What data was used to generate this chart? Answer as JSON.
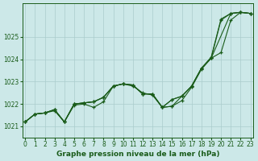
{
  "xlabel": "Graphe pression niveau de la mer (hPa)",
  "bg_color": "#cce8e8",
  "grid_color": "#aacccc",
  "line_color": "#1a5c1a",
  "x_ticks": [
    0,
    1,
    2,
    3,
    4,
    5,
    6,
    7,
    8,
    9,
    10,
    11,
    12,
    13,
    14,
    15,
    16,
    17,
    18,
    19,
    20,
    21,
    22,
    23
  ],
  "y_ticks": [
    1021,
    1022,
    1023,
    1024,
    1025
  ],
  "ylim": [
    1020.5,
    1026.5
  ],
  "xlim": [
    -0.3,
    23.3
  ],
  "series": [
    {
      "x": [
        0,
        1,
        2,
        3,
        4,
        5,
        6,
        7,
        8,
        9,
        10,
        11,
        12,
        13,
        14,
        15,
        16,
        17,
        18,
        19,
        20,
        21,
        22,
        23
      ],
      "y": [
        1021.2,
        1021.55,
        1021.6,
        1021.7,
        1021.2,
        1021.95,
        1022.0,
        1021.85,
        1022.1,
        1022.8,
        1022.9,
        1022.8,
        1022.5,
        1022.4,
        1021.85,
        1021.9,
        1022.15,
        1022.75,
        1023.55,
        1024.05,
        1025.75,
        1026.05,
        1026.1,
        1026.05
      ]
    },
    {
      "x": [
        0,
        1,
        2,
        3,
        4,
        5,
        6,
        7,
        8,
        9,
        10,
        11,
        12,
        13,
        14,
        15,
        16,
        17,
        18,
        19,
        20,
        21,
        22,
        23
      ],
      "y": [
        1021.2,
        1021.55,
        1021.6,
        1021.75,
        1021.2,
        1022.0,
        1022.05,
        1022.1,
        1022.3,
        1022.8,
        1022.9,
        1022.85,
        1022.45,
        1022.45,
        1021.85,
        1022.2,
        1022.35,
        1022.8,
        1023.6,
        1024.1,
        1025.8,
        1026.05,
        1026.1,
        1026.05
      ]
    },
    {
      "x": [
        0,
        1,
        2,
        3,
        4,
        5,
        6,
        7,
        8,
        9,
        10,
        11,
        12,
        13,
        14,
        15,
        16,
        17,
        18,
        19,
        20,
        21,
        22,
        23
      ],
      "y": [
        1021.2,
        1021.55,
        1021.6,
        1021.75,
        1021.2,
        1022.0,
        1022.05,
        1022.1,
        1022.3,
        1022.8,
        1022.9,
        1022.85,
        1022.45,
        1022.45,
        1021.85,
        1022.2,
        1022.35,
        1022.8,
        1023.6,
        1024.05,
        1024.3,
        1025.75,
        1026.1,
        1026.05
      ]
    },
    {
      "x": [
        0,
        1,
        2,
        3,
        4,
        5,
        6,
        7,
        8,
        9,
        10,
        11,
        12,
        13,
        14,
        15,
        16,
        17,
        18,
        19,
        21,
        22,
        23
      ],
      "y": [
        1021.2,
        1021.55,
        1021.6,
        1021.75,
        1021.2,
        1022.0,
        1022.05,
        1022.1,
        1022.3,
        1022.8,
        1022.9,
        1022.85,
        1022.45,
        1022.45,
        1021.85,
        1021.9,
        1022.35,
        1022.8,
        1023.6,
        1024.05,
        1026.05,
        1026.1,
        1026.05
      ]
    }
  ]
}
